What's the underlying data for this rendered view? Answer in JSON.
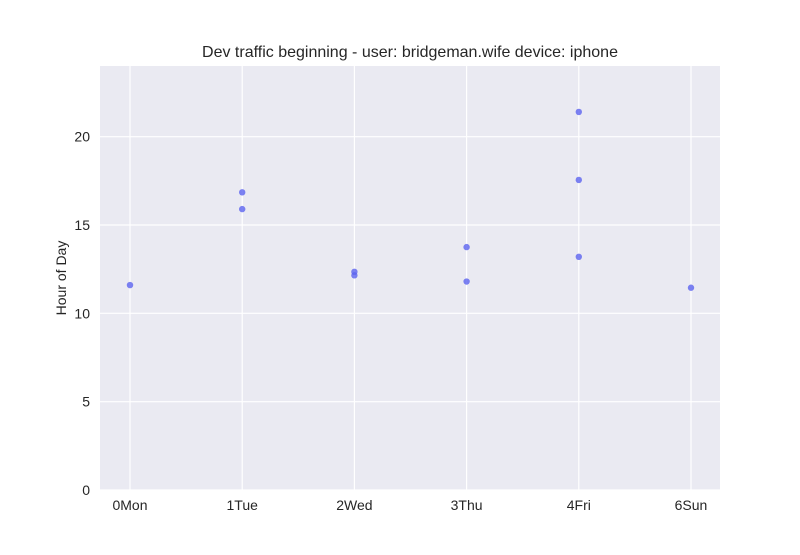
{
  "chart_data": {
    "type": "scatter",
    "title": "Dev traffic beginning - user: bridgeman.wife device: iphone",
    "xlabel": "",
    "ylabel": "Hour of Day",
    "categories": [
      "0Mon",
      "1Tue",
      "2Wed",
      "3Thu",
      "4Fri",
      "6Sun"
    ],
    "ylim": [
      0,
      24
    ],
    "yticks": [
      "0",
      "5",
      "10",
      "15",
      "20"
    ],
    "grid": true,
    "series": [
      {
        "points": [
          {
            "x": "0Mon",
            "y": 11.6
          },
          {
            "x": "1Tue",
            "y": 16.85
          },
          {
            "x": "1Tue",
            "y": 15.9
          },
          {
            "x": "2Wed",
            "y": 12.35
          },
          {
            "x": "2Wed",
            "y": 12.15
          },
          {
            "x": "3Thu",
            "y": 13.75
          },
          {
            "x": "3Thu",
            "y": 11.8
          },
          {
            "x": "4Fri",
            "y": 21.4
          },
          {
            "x": "4Fri",
            "y": 17.55
          },
          {
            "x": "4Fri",
            "y": 13.2
          },
          {
            "x": "6Sun",
            "y": 11.45
          }
        ]
      }
    ],
    "colors": {
      "background": "#eaeaf2",
      "grid": "#ffffff",
      "marker": "#5b63ef"
    }
  }
}
